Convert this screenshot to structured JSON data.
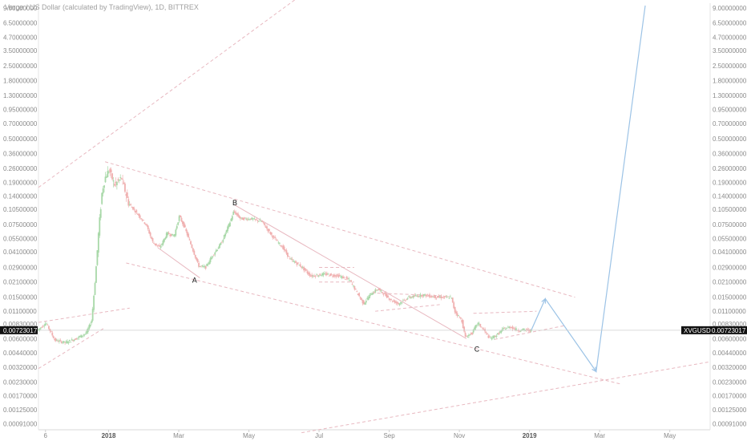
{
  "chart_data": {
    "type": "candlestick",
    "title": "Verge / US Dollar (calculated by TradingView), 1D, BITTREX",
    "symbol": "XVGUSD",
    "last_price": "0.00723017",
    "y_scale": "log",
    "ylim": [
      0.0008,
      10.0
    ],
    "y_tick_labels_left": [
      "9.00000000",
      "6.50000000",
      "4.70000000",
      "3.50000000",
      "2.50000000",
      "1.80000000",
      "1.30000000",
      "0.95000000",
      "0.70000000",
      "0.50000000",
      "0.36000000",
      "0.26000000",
      "0.19000000",
      "0.14000000",
      "0.10500000",
      "0.07500000",
      "0.05500000",
      "0.04100000",
      "0.02900000",
      "0.02100000",
      "0.01500000",
      "0.01100000",
      "0.00830000",
      "0.00600000",
      "0.00440000",
      "0.00320000",
      "0.00230000",
      "0.00170000",
      "0.00125000",
      "0.00091000"
    ],
    "y_tick_labels_right": [
      "9.00000000",
      "6.50000000",
      "4.70000000",
      "3.50000000",
      "2.50000000",
      "1.80000000",
      "1.30000000",
      "0.95000000",
      "0.70000000",
      "0.50000000",
      "0.36000000",
      "0.26000000",
      "0.19000000",
      "0.14000000",
      "0.10500000",
      "0.07500000",
      "0.05500000",
      "0.04100000",
      "0.02900000",
      "0.02100000",
      "0.01500000",
      "0.01100000",
      "0.00830000",
      "0.00600000",
      "0.00440000",
      "0.00320000",
      "0.00230000",
      "0.00170000",
      "0.00125000",
      "0.00091000"
    ],
    "x_ticks": [
      {
        "label": "6",
        "month": 0.2
      },
      {
        "label": "2018",
        "month": 2.0,
        "bold": true
      },
      {
        "label": "Mar",
        "month": 4.0
      },
      {
        "label": "May",
        "month": 6.0
      },
      {
        "label": "Jul",
        "month": 8.0
      },
      {
        "label": "Sep",
        "month": 10.0
      },
      {
        "label": "Nov",
        "month": 12.0
      },
      {
        "label": "2019",
        "month": 14.0,
        "bold": true
      },
      {
        "label": "Mar",
        "month": 16.0
      },
      {
        "label": "May",
        "month": 18.0
      }
    ],
    "x_range_months": [
      0.0,
      19.15
    ],
    "price_path": [
      [
        0.0,
        0.0072
      ],
      [
        0.25,
        0.0085
      ],
      [
        0.5,
        0.0058
      ],
      [
        0.8,
        0.0055
      ],
      [
        1.1,
        0.006
      ],
      [
        1.4,
        0.0068
      ],
      [
        1.55,
        0.009
      ],
      [
        1.65,
        0.022
      ],
      [
        1.75,
        0.065
      ],
      [
        1.85,
        0.16
      ],
      [
        1.95,
        0.22
      ],
      [
        2.05,
        0.25
      ],
      [
        2.2,
        0.18
      ],
      [
        2.4,
        0.21
      ],
      [
        2.6,
        0.12
      ],
      [
        2.8,
        0.1
      ],
      [
        3.1,
        0.075
      ],
      [
        3.3,
        0.05
      ],
      [
        3.5,
        0.045
      ],
      [
        3.7,
        0.062
      ],
      [
        3.9,
        0.058
      ],
      [
        4.05,
        0.09
      ],
      [
        4.2,
        0.07
      ],
      [
        4.4,
        0.046
      ],
      [
        4.6,
        0.03
      ],
      [
        4.8,
        0.029
      ],
      [
        5.0,
        0.038
      ],
      [
        5.25,
        0.05
      ],
      [
        5.5,
        0.08
      ],
      [
        5.6,
        0.1
      ],
      [
        5.8,
        0.085
      ],
      [
        6.1,
        0.085
      ],
      [
        6.4,
        0.08
      ],
      [
        6.7,
        0.058
      ],
      [
        7.0,
        0.045
      ],
      [
        7.2,
        0.035
      ],
      [
        7.5,
        0.03
      ],
      [
        7.8,
        0.024
      ],
      [
        8.2,
        0.025
      ],
      [
        8.6,
        0.024
      ],
      [
        8.9,
        0.022
      ],
      [
        9.1,
        0.017
      ],
      [
        9.3,
        0.013
      ],
      [
        9.5,
        0.016
      ],
      [
        9.7,
        0.018
      ],
      [
        9.9,
        0.016
      ],
      [
        10.1,
        0.014
      ],
      [
        10.3,
        0.013
      ],
      [
        10.6,
        0.015
      ],
      [
        11.0,
        0.0158
      ],
      [
        11.4,
        0.015
      ],
      [
        11.8,
        0.015
      ],
      [
        11.9,
        0.011
      ],
      [
        12.1,
        0.009
      ],
      [
        12.2,
        0.0062
      ],
      [
        12.4,
        0.0068
      ],
      [
        12.55,
        0.0085
      ],
      [
        12.7,
        0.0075
      ],
      [
        12.9,
        0.006
      ],
      [
        13.1,
        0.0065
      ],
      [
        13.3,
        0.0075
      ],
      [
        13.5,
        0.0078
      ],
      [
        13.7,
        0.0072
      ],
      [
        13.85,
        0.0073
      ],
      [
        14.05,
        0.0072
      ]
    ],
    "up_color": "#a8d8a8",
    "down_color": "#f0b0b0",
    "projection_color": "#9cc3e6",
    "channel_line_color": "#e8b8c0",
    "projection_path": [
      [
        14.05,
        0.00723
      ],
      [
        14.45,
        0.0145
      ],
      [
        15.9,
        0.0029
      ],
      [
        17.3,
        9.5
      ]
    ],
    "wave_labels": [
      {
        "text": "B",
        "month": 5.6,
        "price": 0.115
      },
      {
        "text": "A",
        "month": 4.45,
        "price": 0.0208
      },
      {
        "text": "C",
        "month": 12.5,
        "price": 0.0045
      }
    ],
    "grid": false,
    "legend": "none"
  }
}
